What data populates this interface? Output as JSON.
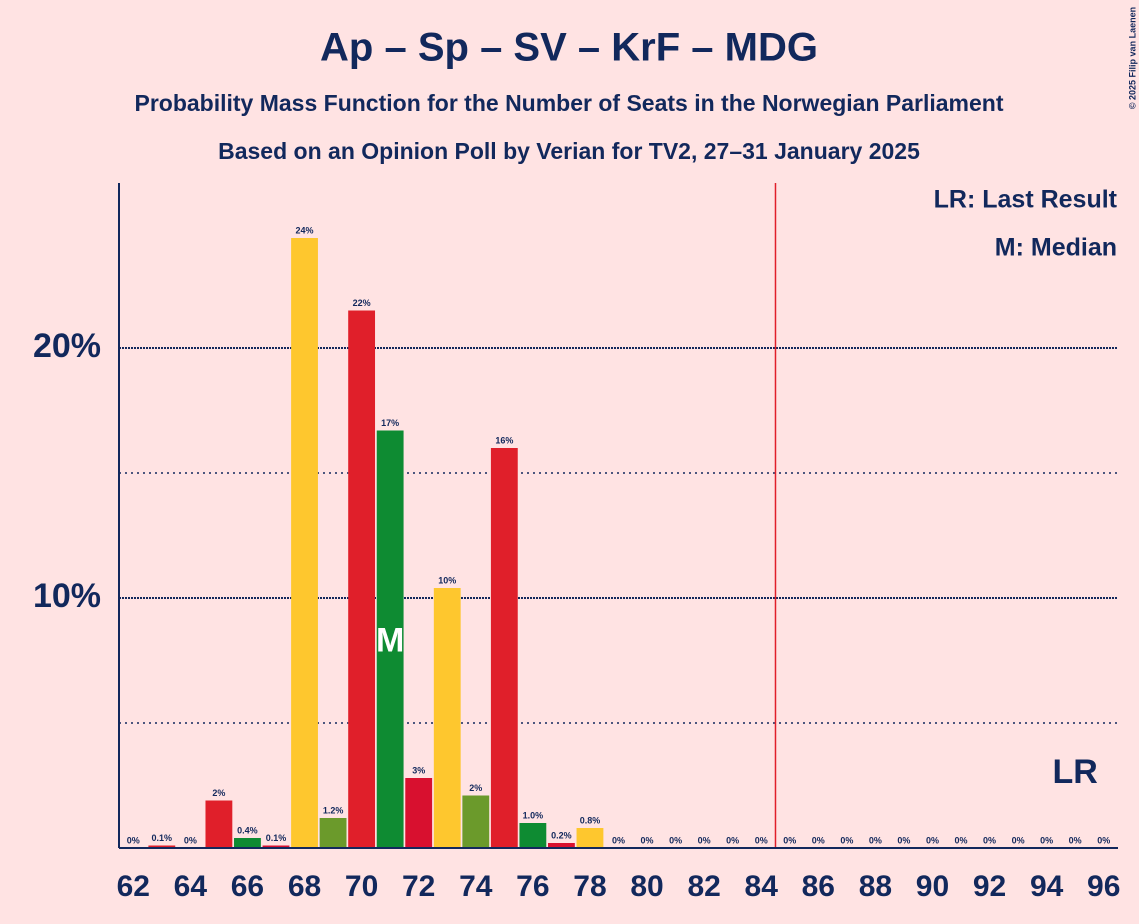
{
  "chart_data": {
    "type": "bar",
    "title": "Ap – Sp – SV – KrF – MDG",
    "subtitle": "Probability Mass Function for the Number of Seats in the Norwegian Parliament",
    "subtitle2": "Based on an Opinion Poll by Verian for TV2, 27–31 January 2025",
    "copyright": "© 2025 Filip van Laenen",
    "legend_lr": "LR: Last Result",
    "legend_median": "M: Median",
    "x": [
      62,
      63,
      64,
      65,
      66,
      67,
      68,
      69,
      70,
      71,
      72,
      73,
      74,
      75,
      76,
      77,
      78,
      79,
      80,
      81,
      82,
      83,
      84,
      85,
      86,
      87,
      88,
      89,
      90,
      91,
      92,
      93,
      94,
      95,
      96
    ],
    "values": [
      0,
      0.1,
      0,
      1.9,
      0.4,
      0.1,
      24.4,
      1.2,
      21.5,
      16.7,
      2.8,
      10.4,
      2.1,
      16.0,
      1.0,
      0.2,
      0.8,
      0,
      0,
      0,
      0,
      0,
      0,
      0,
      0,
      0,
      0,
      0,
      0,
      0,
      0,
      0,
      0,
      0,
      0
    ],
    "value_labels": [
      "0%",
      "0.1%",
      "0%",
      "2%",
      "0.4%",
      "0.1%",
      "24%",
      "1.2%",
      "22%",
      "17%",
      "3%",
      "10%",
      "2%",
      "16%",
      "1.0%",
      "0.2%",
      "0.8%",
      "0%",
      "0%",
      "0%",
      "0%",
      "0%",
      "0%",
      "0%",
      "0%",
      "0%",
      "0%",
      "0%",
      "0%",
      "0%",
      "0%",
      "0%",
      "0%",
      "0%",
      "0%"
    ],
    "colors": [
      "#e01f2a",
      "#e01f2a",
      "#e01f2a",
      "#e01f2a",
      "#0e8b32",
      "#d8102f",
      "#fec72e",
      "#6b9a2b",
      "#e01f2a",
      "#0e8b32",
      "#d8102f",
      "#fec72e",
      "#6b9a2b",
      "#e01f2a",
      "#0e8b32",
      "#d8102f",
      "#fec72e",
      "#e01f2a",
      "#e01f2a",
      "#e01f2a",
      "#e01f2a",
      "#e01f2a",
      "#e01f2a",
      "#e01f2a",
      "#e01f2a",
      "#e01f2a",
      "#e01f2a",
      "#e01f2a",
      "#e01f2a",
      "#e01f2a",
      "#e01f2a",
      "#e01f2a",
      "#e01f2a",
      "#e01f2a",
      "#e01f2a"
    ],
    "xlim": [
      61.5,
      96.5
    ],
    "xticks": [
      62,
      64,
      66,
      68,
      70,
      72,
      74,
      76,
      78,
      80,
      82,
      84,
      86,
      88,
      90,
      92,
      94,
      96
    ],
    "ylim": [
      0,
      26.6
    ],
    "yticks": [
      {
        "value": 10,
        "label": "10%"
      },
      {
        "value": 20,
        "label": "20%"
      }
    ],
    "minor_yticks": [
      5,
      15
    ],
    "majority_line": 84.5,
    "median": 71,
    "median_label": "M",
    "last_result": 95,
    "last_result_label": "LR"
  }
}
